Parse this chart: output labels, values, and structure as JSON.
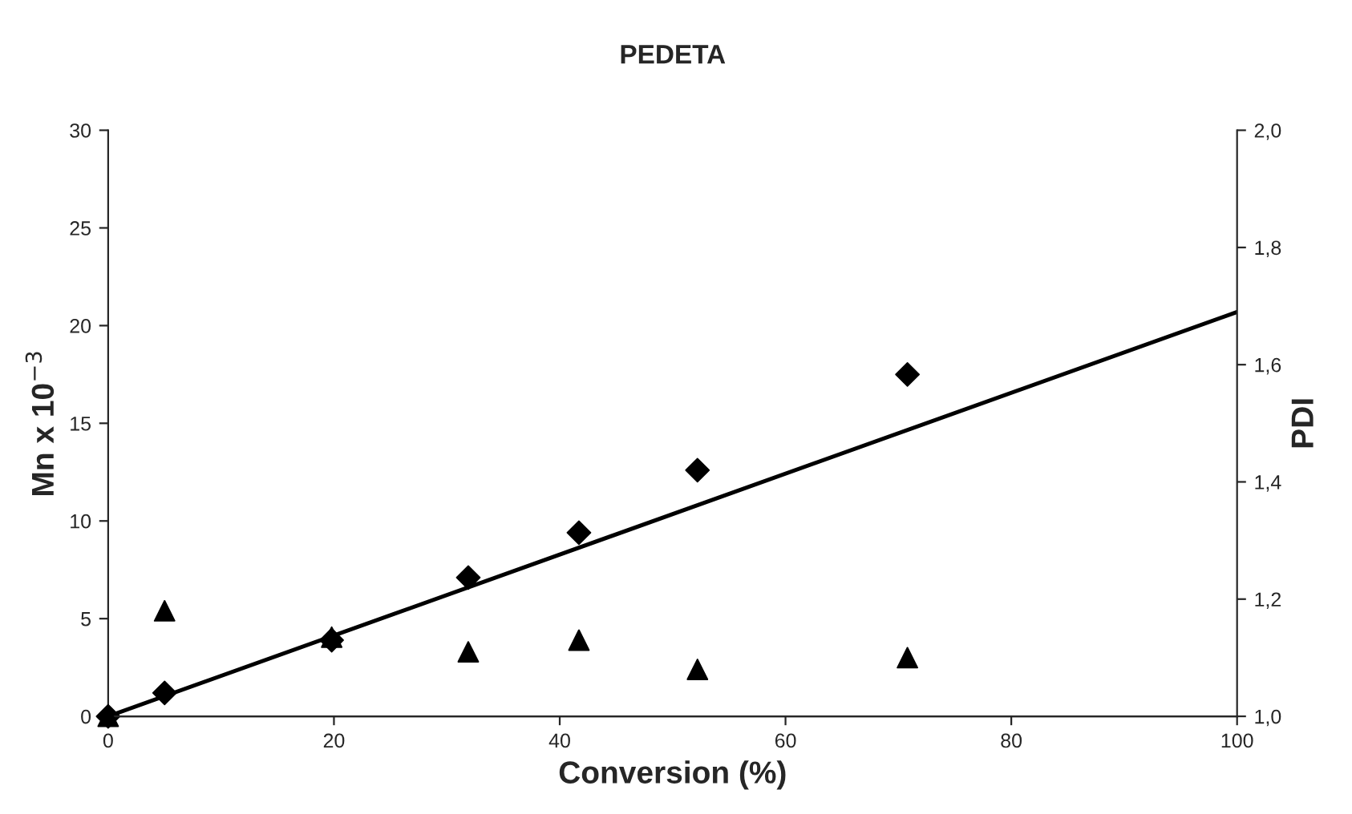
{
  "chart_data": {
    "type": "scatter",
    "title": "PEDETA",
    "xlabel": "Conversion (%)",
    "ylabel": "Mn x 10$^{−3}$",
    "y2label": "PDI",
    "xlim": [
      0,
      100
    ],
    "xticks": [
      0,
      20,
      40,
      60,
      80,
      100
    ],
    "ylim": [
      0,
      30
    ],
    "yticks": [
      0,
      5,
      10,
      15,
      20,
      25,
      30
    ],
    "y2lim": [
      1.0,
      2.0
    ],
    "y2ticks": [
      {
        "value": 1.0,
        "label": "1,0"
      },
      {
        "value": 1.2,
        "label": "1,2"
      },
      {
        "value": 1.4,
        "label": "1,4"
      },
      {
        "value": 1.6,
        "label": "1,6"
      },
      {
        "value": 1.8,
        "label": "1,8"
      },
      {
        "value": 2.0,
        "label": "2,0"
      }
    ],
    "grid": false,
    "legend": false,
    "series": [
      {
        "marker": "diamond",
        "color": "#000000",
        "x": [
          0,
          5.0,
          19.8,
          31.9,
          41.7,
          52.2,
          70.8
        ],
        "values": [
          0,
          1.2,
          3.9,
          7.1,
          9.4,
          12.6,
          17.5
        ]
      },
      {
        "type": "line",
        "marker": "none",
        "line_style": "solid",
        "color": "#000000",
        "x": [
          0,
          100
        ],
        "values": [
          0,
          20.7
        ]
      },
      {
        "marker": "triangle",
        "axis": "y2",
        "color": "#000000",
        "x": [
          0,
          5.0,
          19.8,
          31.9,
          41.7,
          52.2,
          70.8
        ],
        "values": [
          1.0,
          1.18,
          1.135,
          1.11,
          1.13,
          1.08,
          1.1
        ]
      }
    ]
  }
}
